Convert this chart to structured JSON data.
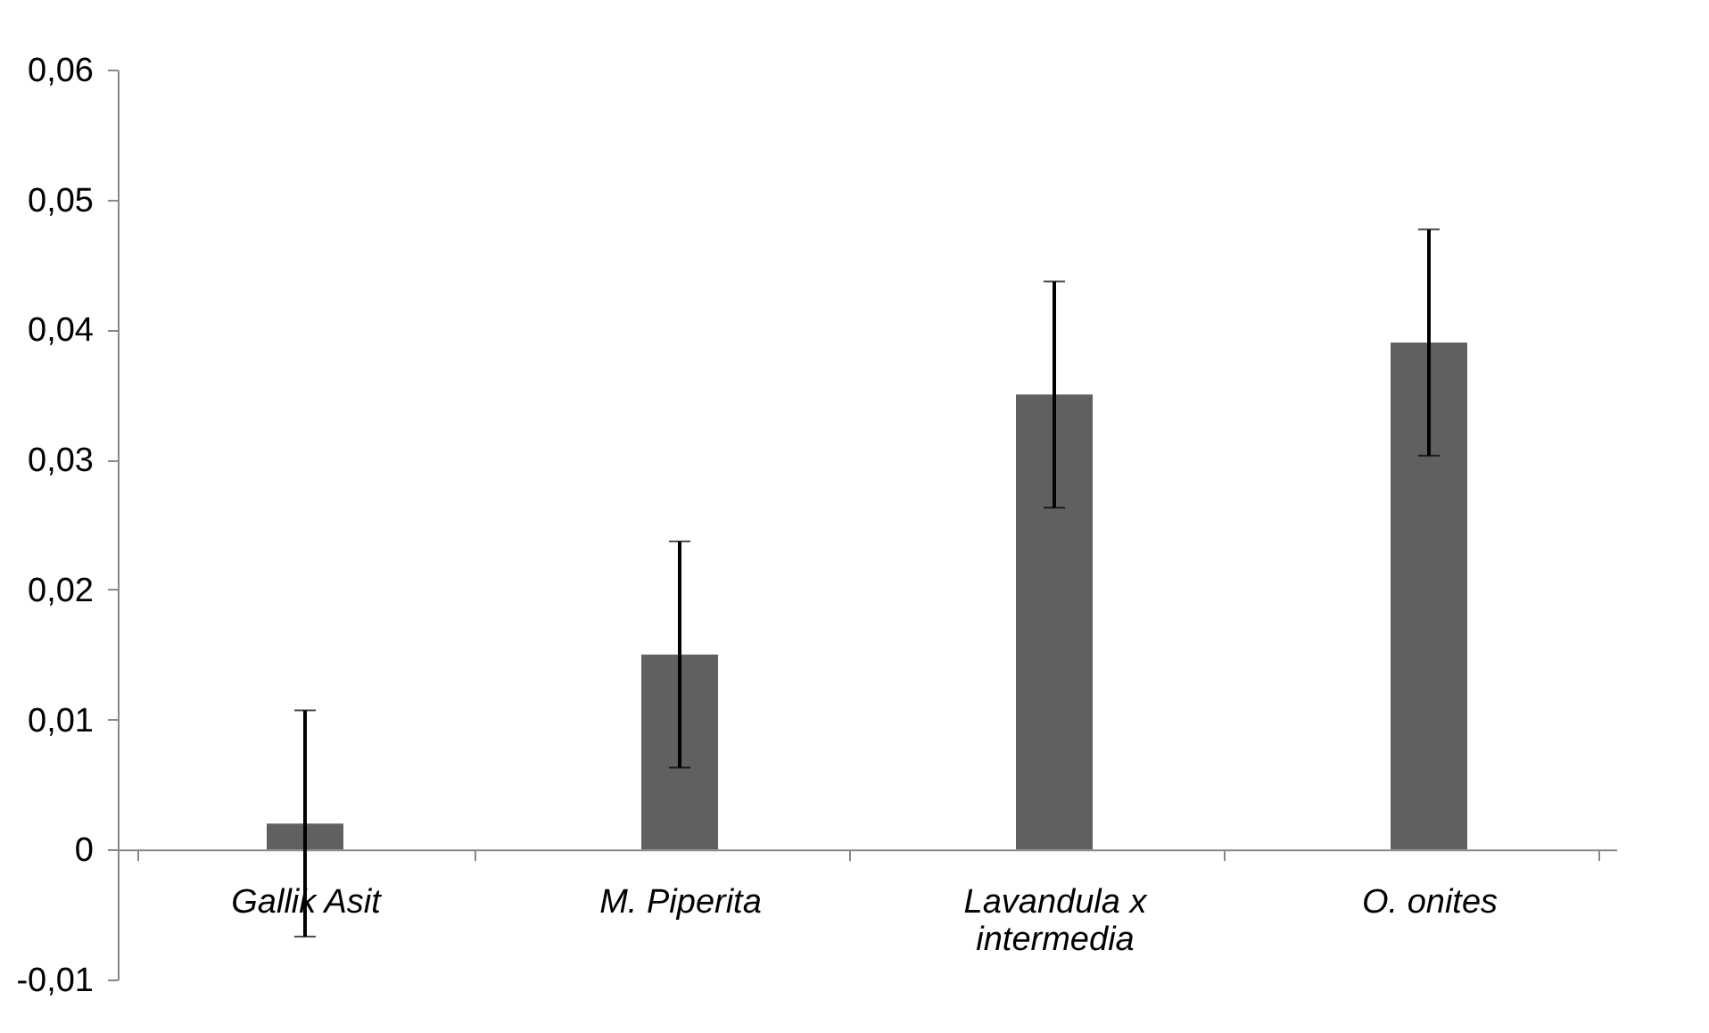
{
  "chart_data": {
    "type": "bar",
    "categories": [
      "Gallik Asit",
      "M. Piperita",
      "Lavandula x intermedia",
      "O. onites"
    ],
    "values": [
      0.002,
      0.015,
      0.035,
      0.039
    ],
    "errors": [
      0.0087,
      0.0087,
      0.0087,
      0.0087
    ],
    "color": "#606060",
    "ylim": [
      -0.01,
      0.06
    ],
    "yticks": [
      {
        "value": -0.01,
        "label": "-0,01"
      },
      {
        "value": 0,
        "label": "0"
      },
      {
        "value": 0.01,
        "label": "0,01"
      },
      {
        "value": 0.02,
        "label": "0,02"
      },
      {
        "value": 0.03,
        "label": "0,03"
      },
      {
        "value": 0.04,
        "label": "0,04"
      },
      {
        "value": 0.05,
        "label": "0,05"
      },
      {
        "value": 0.06,
        "label": "0,06"
      }
    ],
    "grid": false
  }
}
